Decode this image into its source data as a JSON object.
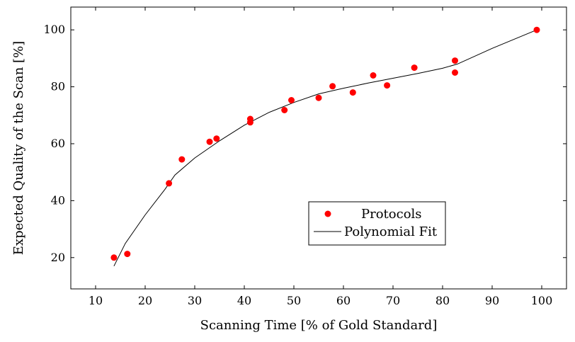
{
  "chart_data": {
    "type": "scatter",
    "xlabel": "Scanning Time [% of Gold Standard]",
    "ylabel": "Expected Quality of the Scan [%]",
    "xlim": [
      5,
      105
    ],
    "ylim": [
      9,
      108
    ],
    "xticks": [
      10,
      20,
      30,
      40,
      50,
      60,
      70,
      80,
      90,
      100
    ],
    "yticks": [
      20,
      40,
      60,
      80,
      100
    ],
    "grid": false,
    "legend_position": "lower-right",
    "series": [
      {
        "name": "Protocols",
        "type": "scatter",
        "color": "#ff0000",
        "points": [
          {
            "x": 13.7,
            "y": 20.0
          },
          {
            "x": 16.4,
            "y": 21.3
          },
          {
            "x": 24.8,
            "y": 46.1
          },
          {
            "x": 27.4,
            "y": 54.5
          },
          {
            "x": 33.0,
            "y": 60.7
          },
          {
            "x": 34.4,
            "y": 61.8
          },
          {
            "x": 41.2,
            "y": 67.5
          },
          {
            "x": 41.2,
            "y": 68.7
          },
          {
            "x": 48.1,
            "y": 71.8
          },
          {
            "x": 49.5,
            "y": 75.3
          },
          {
            "x": 55.0,
            "y": 76.1
          },
          {
            "x": 57.8,
            "y": 80.2
          },
          {
            "x": 61.9,
            "y": 78.0
          },
          {
            "x": 66.0,
            "y": 84.0
          },
          {
            "x": 68.8,
            "y": 80.5
          },
          {
            "x": 74.3,
            "y": 86.7
          },
          {
            "x": 82.5,
            "y": 85.0
          },
          {
            "x": 82.5,
            "y": 89.2
          },
          {
            "x": 99.0,
            "y": 100.0
          }
        ]
      },
      {
        "name": "Polynomial Fit",
        "type": "line",
        "color": "#000000",
        "points": [
          {
            "x": 13.7,
            "y": 17.0
          },
          {
            "x": 16.0,
            "y": 25.0
          },
          {
            "x": 20.0,
            "y": 35.0
          },
          {
            "x": 24.0,
            "y": 44.0
          },
          {
            "x": 26.0,
            "y": 49.0
          },
          {
            "x": 30.0,
            "y": 55.0
          },
          {
            "x": 35.0,
            "y": 61.0
          },
          {
            "x": 40.0,
            "y": 66.5
          },
          {
            "x": 45.0,
            "y": 71.0
          },
          {
            "x": 50.0,
            "y": 74.5
          },
          {
            "x": 55.0,
            "y": 77.5
          },
          {
            "x": 60.0,
            "y": 79.5
          },
          {
            "x": 65.0,
            "y": 81.3
          },
          {
            "x": 70.0,
            "y": 83.0
          },
          {
            "x": 75.0,
            "y": 84.7
          },
          {
            "x": 80.0,
            "y": 86.5
          },
          {
            "x": 83.0,
            "y": 88.0
          },
          {
            "x": 90.0,
            "y": 93.5
          },
          {
            "x": 99.0,
            "y": 100.0
          }
        ]
      }
    ]
  }
}
